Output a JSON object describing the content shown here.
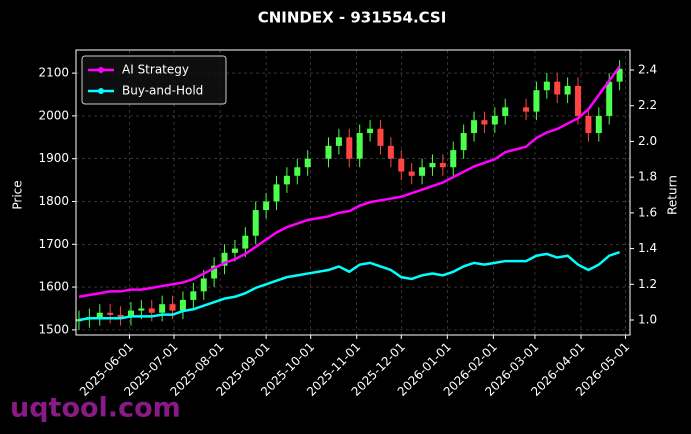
{
  "chart_data": {
    "type": "candlestick",
    "title": "CNINDEX - 931554.CSI",
    "ylabel": "Price",
    "y2label": "Return",
    "watermark": "uqtool.com",
    "x": [
      "2025-04-28",
      "2025-05-05",
      "2025-05-12",
      "2025-05-19",
      "2025-05-26",
      "2025-06-02",
      "2025-06-09",
      "2025-06-16",
      "2025-06-23",
      "2025-06-30",
      "2025-07-07",
      "2025-07-14",
      "2025-07-21",
      "2025-07-28",
      "2025-08-04",
      "2025-08-11",
      "2025-08-18",
      "2025-08-25",
      "2025-09-01",
      "2025-09-08",
      "2025-09-15",
      "2025-09-22",
      "2025-09-29",
      "2025-10-13",
      "2025-10-20",
      "2025-10-27",
      "2025-11-03",
      "2025-11-10",
      "2025-11-17",
      "2025-11-24",
      "2025-12-01",
      "2025-12-08",
      "2025-12-15",
      "2025-12-22",
      "2025-12-29",
      "2026-01-05",
      "2026-01-12",
      "2026-01-19",
      "2026-01-26",
      "2026-02-02",
      "2026-02-09",
      "2026-02-23",
      "2026-03-02",
      "2026-03-09",
      "2026-03-16",
      "2026-03-23",
      "2026-03-30",
      "2026-04-06",
      "2026-04-13",
      "2026-04-20",
      "2026-04-27"
    ],
    "open": [
      1520,
      1525,
      1530,
      1540,
      1535,
      1530,
      1545,
      1550,
      1540,
      1560,
      1545,
      1570,
      1590,
      1620,
      1650,
      1680,
      1690,
      1720,
      1780,
      1800,
      1840,
      1860,
      1880,
      1900,
      1930,
      1950,
      1900,
      1960,
      1970,
      1930,
      1900,
      1870,
      1860,
      1880,
      1890,
      1880,
      1920,
      1960,
      1990,
      1980,
      2000,
      2020,
      2010,
      2060,
      2080,
      2050,
      2070,
      2000,
      1960,
      2000,
      2080
    ],
    "high": [
      1545,
      1550,
      1560,
      1560,
      1555,
      1565,
      1570,
      1570,
      1580,
      1580,
      1590,
      1610,
      1640,
      1670,
      1700,
      1710,
      1740,
      1800,
      1820,
      1860,
      1880,
      1900,
      1920,
      1950,
      1970,
      1970,
      1980,
      1990,
      1990,
      1950,
      1920,
      1890,
      1900,
      1910,
      1910,
      1940,
      1980,
      2010,
      2010,
      2020,
      2040,
      2040,
      2080,
      2100,
      2100,
      2090,
      2090,
      2020,
      2020,
      2100,
      2130
    ],
    "low": [
      1500,
      1505,
      1510,
      1515,
      1510,
      1510,
      1525,
      1520,
      1520,
      1525,
      1525,
      1550,
      1570,
      1600,
      1630,
      1660,
      1670,
      1700,
      1760,
      1780,
      1820,
      1840,
      1860,
      1880,
      1910,
      1880,
      1880,
      1940,
      1910,
      1880,
      1850,
      1840,
      1840,
      1860,
      1860,
      1860,
      1900,
      1940,
      1960,
      1960,
      1980,
      1990,
      1990,
      2040,
      2030,
      2030,
      1980,
      1940,
      1940,
      1980,
      2060
    ],
    "close": [
      1525,
      1530,
      1540,
      1535,
      1530,
      1545,
      1550,
      1540,
      1560,
      1545,
      1570,
      1590,
      1620,
      1650,
      1680,
      1690,
      1720,
      1780,
      1800,
      1840,
      1860,
      1880,
      1900,
      1930,
      1950,
      1900,
      1960,
      1970,
      1930,
      1900,
      1870,
      1860,
      1880,
      1890,
      1880,
      1920,
      1960,
      1990,
      1980,
      2000,
      2020,
      2010,
      2060,
      2080,
      2050,
      2070,
      2000,
      1960,
      2000,
      2080,
      2110
    ],
    "up_color": "#4cff4c",
    "down_color": "#ff4444",
    "series": [
      {
        "name": "AI Strategy",
        "color": "#ff00ff",
        "axis": "y2",
        "values": [
          1.13,
          1.14,
          1.15,
          1.16,
          1.16,
          1.17,
          1.17,
          1.18,
          1.19,
          1.2,
          1.21,
          1.23,
          1.26,
          1.29,
          1.32,
          1.34,
          1.37,
          1.41,
          1.45,
          1.49,
          1.52,
          1.54,
          1.56,
          1.58,
          1.6,
          1.61,
          1.64,
          1.66,
          1.67,
          1.68,
          1.69,
          1.71,
          1.73,
          1.75,
          1.77,
          1.8,
          1.83,
          1.86,
          1.88,
          1.9,
          1.94,
          1.97,
          2.02,
          2.05,
          2.07,
          2.1,
          2.13,
          2.18,
          2.26,
          2.34,
          2.42
        ]
      },
      {
        "name": "Buy-and-Hold",
        "color": "#00ffff",
        "axis": "y2",
        "values": [
          1.0,
          1.01,
          1.01,
          1.01,
          1.01,
          1.02,
          1.02,
          1.02,
          1.03,
          1.03,
          1.05,
          1.06,
          1.08,
          1.1,
          1.12,
          1.13,
          1.15,
          1.18,
          1.2,
          1.22,
          1.24,
          1.25,
          1.26,
          1.28,
          1.3,
          1.27,
          1.31,
          1.32,
          1.3,
          1.28,
          1.24,
          1.23,
          1.25,
          1.26,
          1.25,
          1.27,
          1.3,
          1.32,
          1.31,
          1.32,
          1.33,
          1.33,
          1.36,
          1.37,
          1.35,
          1.36,
          1.31,
          1.28,
          1.31,
          1.36,
          1.38
        ]
      }
    ],
    "xlim": [
      "2025-04-26",
      "2026-05-04"
    ],
    "xticks": [
      "2025-06-01",
      "2025-07-01",
      "2025-08-01",
      "2025-09-01",
      "2025-10-01",
      "2025-11-01",
      "2025-12-01",
      "2026-01-01",
      "2026-02-01",
      "2026-03-01",
      "2026-04-01",
      "2026-05-01"
    ],
    "ylim": [
      1488,
      2154
    ],
    "yticks": [
      1500,
      1600,
      1700,
      1800,
      1900,
      2000,
      2100
    ],
    "y2lim": [
      0.916,
      2.512
    ],
    "y2ticks": [
      {
        "value": 1,
        "label": "1.0"
      },
      1.2,
      1.4,
      1.6,
      1.8,
      {
        "value": 2,
        "label": "2.0"
      },
      2.2,
      2.4
    ],
    "grid": true,
    "legend": "upper left"
  }
}
